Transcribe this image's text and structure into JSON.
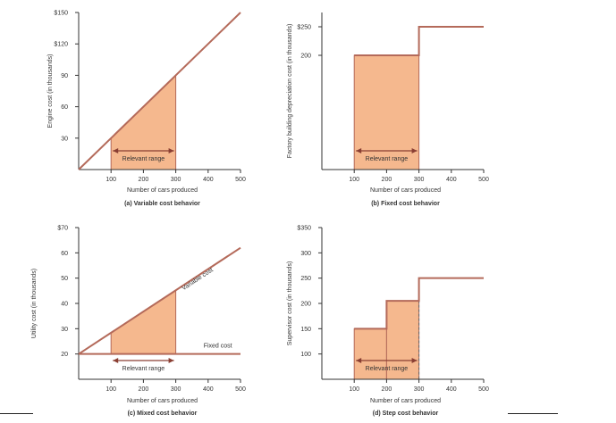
{
  "chart_data": [
    {
      "id": "a",
      "type": "line",
      "caption": "(a) Variable cost behavior",
      "xlabel": "Number of cars produced",
      "ylabel": "Engine cost (in thousands)",
      "xlim": [
        0,
        500
      ],
      "ylim": [
        0,
        150
      ],
      "xticks": [
        "100",
        "200",
        "300",
        "400",
        "500"
      ],
      "xtick_values": [
        100,
        200,
        300,
        400,
        500
      ],
      "yticks": [
        "30",
        "60",
        "90",
        "$120",
        "$150"
      ],
      "ytick_values": [
        30,
        60,
        90,
        120,
        150
      ],
      "series": [
        {
          "points": [
            [
              0,
              0
            ],
            [
              500,
              150
            ]
          ]
        }
      ],
      "shaded": {
        "kind": "under_line",
        "x": [
          100,
          300
        ]
      },
      "relevant_range": {
        "label": "Relevant range",
        "x": [
          100,
          300
        ]
      },
      "annotations": []
    },
    {
      "id": "b",
      "type": "line",
      "caption": "(b) Fixed cost behavior",
      "xlabel": "Number of cars produced",
      "ylabel": "Factory building depreciation cost (in thousands)",
      "xlim": [
        0,
        500
      ],
      "ylim": [
        0,
        275
      ],
      "xticks": [
        "100",
        "200",
        "300",
        "400",
        "500"
      ],
      "xtick_values": [
        100,
        200,
        300,
        400,
        500
      ],
      "yticks": [
        "200",
        "$250"
      ],
      "ytick_values": [
        200,
        250
      ],
      "series": [
        {
          "points": [
            [
              100,
              200
            ],
            [
              300,
              200
            ],
            [
              300,
              250
            ],
            [
              500,
              250
            ]
          ]
        }
      ],
      "shaded": {
        "kind": "rect",
        "x": [
          100,
          300
        ],
        "y": 200
      },
      "relevant_range": {
        "label": "Relevant range",
        "x": [
          100,
          300
        ]
      },
      "annotations": []
    },
    {
      "id": "c",
      "type": "line",
      "caption": "(c) Mixed cost behavior",
      "xlabel": "Number of cars produced",
      "ylabel": "Utility cost (in thousands)",
      "xlim": [
        0,
        500
      ],
      "ylim": [
        10,
        70
      ],
      "xticks": [
        "100",
        "200",
        "300",
        "400",
        "500"
      ],
      "xtick_values": [
        100,
        200,
        300,
        400,
        500
      ],
      "yticks": [
        "20",
        "30",
        "40",
        "50",
        "60",
        "$70"
      ],
      "ytick_values": [
        20,
        30,
        40,
        50,
        60,
        70
      ],
      "series": [
        {
          "points": [
            [
              0,
              20
            ],
            [
              500,
              62
            ]
          ]
        },
        {
          "points": [
            [
              0,
              20
            ],
            [
              500,
              20
            ]
          ]
        }
      ],
      "shaded": {
        "kind": "under_line",
        "x": [
          100,
          300
        ],
        "base": 20
      },
      "relevant_range": {
        "label": "Relevant range",
        "x": [
          100,
          300
        ]
      },
      "annotations": [
        {
          "text": "Variable cost",
          "x": 370,
          "y": 49,
          "rotate": true
        },
        {
          "text": "Fixed cost",
          "x": 430,
          "y": 22.5,
          "rotate": false
        }
      ]
    },
    {
      "id": "d",
      "type": "line",
      "caption": "(d) Step cost behavior",
      "xlabel": "Number of cars produced",
      "ylabel": "Supervisor cost (in thousands)",
      "xlim": [
        0,
        500
      ],
      "ylim": [
        50,
        350
      ],
      "xticks": [
        "100",
        "200",
        "300",
        "400",
        "500"
      ],
      "xtick_values": [
        100,
        200,
        300,
        400,
        500
      ],
      "yticks": [
        "100",
        "150",
        "200",
        "250",
        "300",
        "$350"
      ],
      "ytick_values": [
        100,
        150,
        200,
        250,
        300,
        350
      ],
      "series": [
        {
          "points": [
            [
              100,
              150
            ],
            [
              200,
              150
            ],
            [
              200,
              205
            ],
            [
              300,
              205
            ],
            [
              300,
              250
            ],
            [
              500,
              250
            ]
          ]
        }
      ],
      "shaded": {
        "kind": "steps",
        "steps": [
          [
            100,
            200,
            150
          ],
          [
            200,
            300,
            205
          ]
        ]
      },
      "relevant_range": {
        "label": "Relevant range",
        "x": [
          100,
          300
        ]
      },
      "annotations": []
    }
  ],
  "colors": {
    "line": "#b46a5a",
    "fill": "#f5b88e",
    "axis": "#333333",
    "text": "#333333"
  }
}
